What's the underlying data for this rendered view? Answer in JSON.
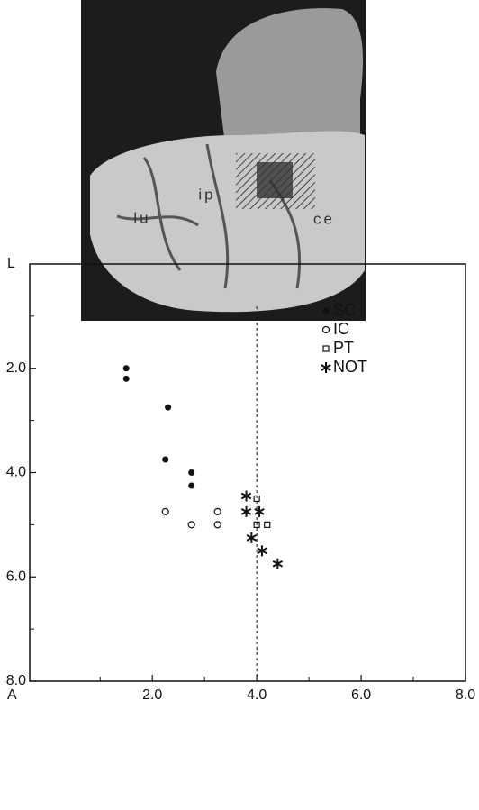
{
  "photo": {
    "labels": [
      "lu",
      "ip",
      "ce"
    ]
  },
  "chart_data": {
    "type": "scatter",
    "xlabel": "A",
    "ylabel": "L",
    "xlim": [
      -0.35,
      8
    ],
    "ylim": [
      0,
      8
    ],
    "y_inverted": true,
    "xticks": [
      {
        "value": 2,
        "label": "2.0"
      },
      {
        "value": 4,
        "label": "4.0"
      },
      {
        "value": 6,
        "label": "6.0"
      },
      {
        "value": 8,
        "label": "8.0"
      }
    ],
    "yticks": [
      {
        "value": 2,
        "label": "2.0"
      },
      {
        "value": 4,
        "label": "4.0"
      },
      {
        "value": 6,
        "label": "6.0"
      },
      {
        "value": 8,
        "label": "8.0"
      }
    ],
    "minor_ticks": [
      1,
      3,
      5,
      7
    ],
    "reference_x": 4,
    "legend": "upper right",
    "series": [
      {
        "name": "SC",
        "marker": "filled-circle",
        "color": "#111",
        "x": [
          1.5,
          1.5,
          2.3,
          2.25,
          2.75,
          2.75
        ],
        "values": [
          2.0,
          2.2,
          2.75,
          3.75,
          4.0,
          4.25
        ]
      },
      {
        "name": "IC",
        "marker": "open-circle",
        "color": "#111",
        "x": [
          2.25,
          2.75,
          3.25,
          3.25
        ],
        "values": [
          4.75,
          5.0,
          4.75,
          5.0
        ]
      },
      {
        "name": "PT",
        "marker": "open-square",
        "color": "#111",
        "x": [
          4.0,
          4.0,
          4.2
        ],
        "values": [
          4.5,
          5.0,
          5.0
        ]
      },
      {
        "name": "NOT",
        "marker": "asterisk",
        "color": "#111",
        "x": [
          3.8,
          3.8,
          4.05,
          3.9,
          4.1,
          4.4
        ],
        "values": [
          4.45,
          4.75,
          4.75,
          5.25,
          5.5,
          5.75
        ]
      }
    ]
  }
}
